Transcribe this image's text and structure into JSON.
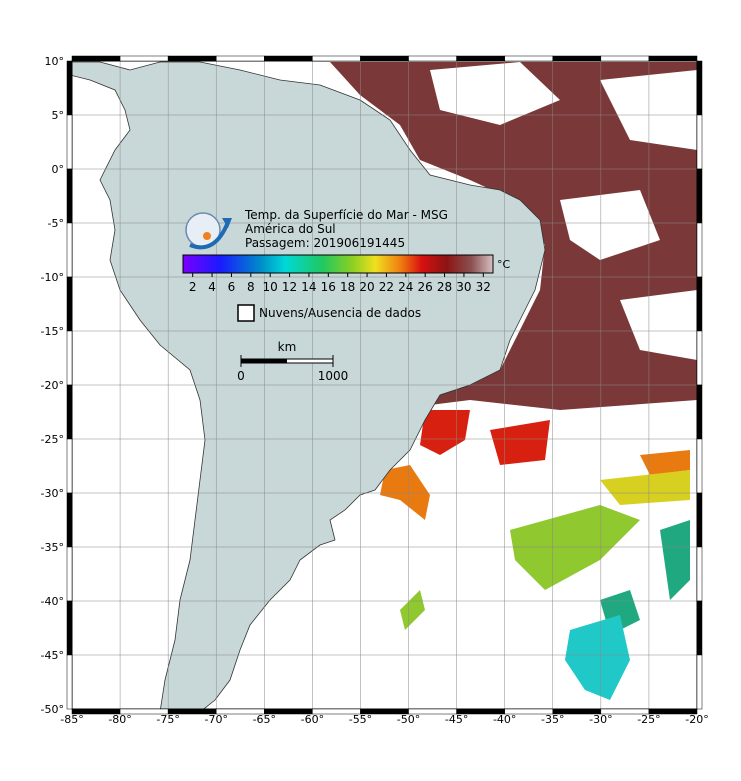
{
  "map": {
    "title": "Temp. da Superfície do Mar - MSG",
    "region": "América do Sul",
    "pass": "Passagem: 201906191445",
    "colorbar": {
      "unit": "°C",
      "range": [
        1,
        33
      ],
      "ticks": [
        2,
        4,
        6,
        8,
        10,
        12,
        14,
        16,
        18,
        20,
        22,
        24,
        26,
        28,
        30,
        32
      ]
    },
    "legend": "Nuvens/Ausencia de dados",
    "scale": {
      "unit": "km",
      "ticks": [
        0,
        1000
      ]
    },
    "lonlim": [
      -85,
      -20
    ],
    "latlim": [
      -50,
      10
    ],
    "lon_ticks": [
      {
        "value": -85,
        "label": "-85°"
      },
      {
        "value": -80,
        "label": "-80°"
      },
      {
        "value": -75,
        "label": "-75°"
      },
      {
        "value": -70,
        "label": "-70°"
      },
      {
        "value": -65,
        "label": "-65°"
      },
      {
        "value": -60,
        "label": "-60°"
      },
      {
        "value": -55,
        "label": "-55°"
      },
      {
        "value": -50,
        "label": "-50°"
      },
      {
        "value": -45,
        "label": "-45°"
      },
      {
        "value": -40,
        "label": "-40°"
      },
      {
        "value": -35,
        "label": "-35°"
      },
      {
        "value": -30,
        "label": "-30°"
      },
      {
        "value": -25,
        "label": "-25°"
      },
      {
        "value": -20,
        "label": "-20°"
      }
    ],
    "lat_ticks": [
      {
        "value": 10,
        "label": "10°"
      },
      {
        "value": 5,
        "label": "5°"
      },
      {
        "value": 0,
        "label": "0°"
      },
      {
        "value": -5,
        "label": "-5°"
      },
      {
        "value": -10,
        "label": "-10°"
      },
      {
        "value": -15,
        "label": "-15°"
      },
      {
        "value": -20,
        "label": "-20°"
      },
      {
        "value": -25,
        "label": "-25°"
      },
      {
        "value": -30,
        "label": "-30°"
      },
      {
        "value": -35,
        "label": "-35°"
      },
      {
        "value": -40,
        "label": "-40°"
      },
      {
        "value": -45,
        "label": "-45°"
      },
      {
        "value": -50,
        "label": "-50°"
      }
    ]
  }
}
